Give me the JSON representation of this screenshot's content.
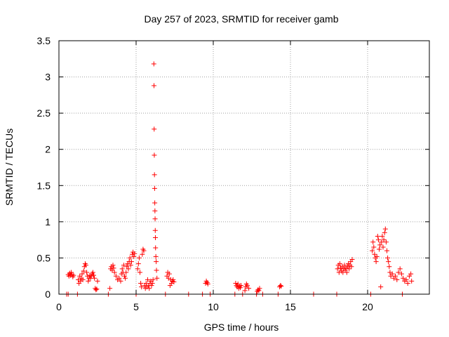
{
  "chart_data": {
    "type": "scatter",
    "title": "Day 257 of 2023, SRMTID for receiver gamb",
    "xlabel": "GPS time / hours",
    "ylabel": "SRMTID / TECUs",
    "xlim": [
      0,
      24
    ],
    "ylim": [
      0,
      3.5
    ],
    "xticks": [
      0,
      5,
      10,
      15,
      20
    ],
    "yticks": [
      0,
      0.5,
      1,
      1.5,
      2,
      2.5,
      3,
      3.5
    ],
    "xtick_labels": [
      "0",
      "5",
      "10",
      "15",
      "20"
    ],
    "ytick_labels": [
      "0",
      "0.5",
      "1",
      "1.5",
      "2",
      "2.5",
      "3",
      "3.5"
    ],
    "grid": true,
    "marker": "+",
    "color": "#ff0000",
    "series": [
      {
        "name": "SRMTID",
        "points": [
          [
            0.5,
            0
          ],
          [
            0.6,
            0
          ],
          [
            0.6,
            0.27
          ],
          [
            0.65,
            0.25
          ],
          [
            0.7,
            0.29
          ],
          [
            0.75,
            0.26
          ],
          [
            0.8,
            0.3
          ],
          [
            0.85,
            0.27
          ],
          [
            0.9,
            0.24
          ],
          [
            0.95,
            0.26
          ],
          [
            1.2,
            0
          ],
          [
            1.25,
            0.2
          ],
          [
            1.3,
            0.15
          ],
          [
            1.35,
            0.25
          ],
          [
            1.4,
            0.18
          ],
          [
            1.45,
            0.22
          ],
          [
            1.5,
            0.28
          ],
          [
            1.55,
            0.2
          ],
          [
            1.6,
            0.32
          ],
          [
            1.65,
            0.38
          ],
          [
            1.7,
            0.42
          ],
          [
            1.75,
            0.4
          ],
          [
            1.8,
            0.3
          ],
          [
            1.85,
            0.25
          ],
          [
            1.9,
            0.18
          ],
          [
            1.95,
            0.22
          ],
          [
            2.0,
            0.26
          ],
          [
            2.05,
            0.22
          ],
          [
            2.1,
            0.25
          ],
          [
            2.15,
            0.28
          ],
          [
            2.2,
            0.3
          ],
          [
            2.25,
            0.26
          ],
          [
            2.3,
            0.22
          ],
          [
            2.35,
            0.08
          ],
          [
            2.4,
            0.06
          ],
          [
            2.45,
            0.07
          ],
          [
            2.5,
            0.18
          ],
          [
            3.2,
            0
          ],
          [
            3.3,
            0.08
          ],
          [
            3.35,
            0.35
          ],
          [
            3.4,
            0.38
          ],
          [
            3.45,
            0.33
          ],
          [
            3.5,
            0.4
          ],
          [
            3.55,
            0.36
          ],
          [
            3.6,
            0.3
          ],
          [
            3.7,
            0.25
          ],
          [
            3.8,
            0.2
          ],
          [
            3.9,
            0.22
          ],
          [
            4.0,
            0.18
          ],
          [
            4.05,
            0.28
          ],
          [
            4.1,
            0.35
          ],
          [
            4.15,
            0.3
          ],
          [
            4.2,
            0.4
          ],
          [
            4.25,
            0.25
          ],
          [
            4.3,
            0.22
          ],
          [
            4.35,
            0.3
          ],
          [
            4.4,
            0.38
          ],
          [
            4.45,
            0.42
          ],
          [
            4.5,
            0.35
          ],
          [
            4.55,
            0.45
          ],
          [
            4.6,
            0.5
          ],
          [
            4.65,
            0.4
          ],
          [
            4.7,
            0.45
          ],
          [
            4.75,
            0.55
          ],
          [
            4.8,
            0.58
          ],
          [
            4.85,
            0.52
          ],
          [
            4.9,
            0.56
          ],
          [
            5.0,
            0
          ],
          [
            5.1,
            0.35
          ],
          [
            5.15,
            0.42
          ],
          [
            5.2,
            0.5
          ],
          [
            5.25,
            0.3
          ],
          [
            5.3,
            0.15
          ],
          [
            5.35,
            0.1
          ],
          [
            5.4,
            0.55
          ],
          [
            5.45,
            0.62
          ],
          [
            5.5,
            0.6
          ],
          [
            5.55,
            0.12
          ],
          [
            5.6,
            0.08
          ],
          [
            5.65,
            0.15
          ],
          [
            5.7,
            0.1
          ],
          [
            5.75,
            0.2
          ],
          [
            5.8,
            0.12
          ],
          [
            5.85,
            0.08
          ],
          [
            5.9,
            0.15
          ],
          [
            5.95,
            0.18
          ],
          [
            6.0,
            0.12
          ],
          [
            6.05,
            0.15
          ],
          [
            6.1,
            0.2
          ],
          [
            6.15,
            3.18
          ],
          [
            6.16,
            2.88
          ],
          [
            6.17,
            2.28
          ],
          [
            6.18,
            1.92
          ],
          [
            6.19,
            1.65
          ],
          [
            6.2,
            1.46
          ],
          [
            6.21,
            1.26
          ],
          [
            6.22,
            1.15
          ],
          [
            6.23,
            1.04
          ],
          [
            6.24,
            0.88
          ],
          [
            6.25,
            0.78
          ],
          [
            6.26,
            0.64
          ],
          [
            6.28,
            0.52
          ],
          [
            6.3,
            0.45
          ],
          [
            6.32,
            0.33
          ],
          [
            6.35,
            0.22
          ],
          [
            6.9,
            0
          ],
          [
            7.0,
            0.25
          ],
          [
            7.05,
            0.3
          ],
          [
            7.1,
            0.22
          ],
          [
            7.15,
            0.28
          ],
          [
            7.2,
            0.12
          ],
          [
            7.25,
            0.2
          ],
          [
            7.3,
            0.15
          ],
          [
            7.35,
            0.18
          ],
          [
            7.4,
            0.2
          ],
          [
            7.45,
            0.17
          ],
          [
            8.4,
            0
          ],
          [
            9.3,
            0
          ],
          [
            9.5,
            0.15
          ],
          [
            9.55,
            0.18
          ],
          [
            9.6,
            0.16
          ],
          [
            9.65,
            0.14
          ],
          [
            9.8,
            0
          ],
          [
            11.4,
            0
          ],
          [
            11.45,
            0.15
          ],
          [
            11.5,
            0.12
          ],
          [
            11.55,
            0.1
          ],
          [
            11.6,
            0.14
          ],
          [
            11.65,
            0.08
          ],
          [
            11.7,
            0.11
          ],
          [
            11.75,
            0.09
          ],
          [
            11.8,
            0.12
          ],
          [
            11.9,
            0
          ],
          [
            12.05,
            0.05
          ],
          [
            12.1,
            0.1
          ],
          [
            12.15,
            0.14
          ],
          [
            12.2,
            0.12
          ],
          [
            12.3,
            0.08
          ],
          [
            12.8,
            0
          ],
          [
            12.85,
            0.04
          ],
          [
            12.9,
            0.06
          ],
          [
            12.95,
            0.05
          ],
          [
            13.0,
            0.08
          ],
          [
            13.2,
            0
          ],
          [
            14.2,
            0
          ],
          [
            14.3,
            0.1
          ],
          [
            14.35,
            0.12
          ],
          [
            14.4,
            0.11
          ],
          [
            16.5,
            0
          ],
          [
            18.0,
            0
          ],
          [
            18.05,
            0.35
          ],
          [
            18.1,
            0.4
          ],
          [
            18.15,
            0.3
          ],
          [
            18.2,
            0.42
          ],
          [
            18.25,
            0.36
          ],
          [
            18.3,
            0.32
          ],
          [
            18.35,
            0.38
          ],
          [
            18.4,
            0.3
          ],
          [
            18.45,
            0.35
          ],
          [
            18.5,
            0.4
          ],
          [
            18.55,
            0.33
          ],
          [
            18.6,
            0.36
          ],
          [
            18.65,
            0.3
          ],
          [
            18.7,
            0.38
          ],
          [
            18.75,
            0.42
          ],
          [
            18.8,
            0.35
          ],
          [
            18.85,
            0.4
          ],
          [
            18.9,
            0.45
          ],
          [
            18.95,
            0.38
          ],
          [
            19.0,
            0.48
          ],
          [
            20.2,
            0
          ],
          [
            20.3,
            0.6
          ],
          [
            20.35,
            0.72
          ],
          [
            20.4,
            0.65
          ],
          [
            20.45,
            0.55
          ],
          [
            20.5,
            0.5
          ],
          [
            20.55,
            0.45
          ],
          [
            20.6,
            0.52
          ],
          [
            20.65,
            0.8
          ],
          [
            20.7,
            0.75
          ],
          [
            20.75,
            0.62
          ],
          [
            20.8,
            0.68
          ],
          [
            20.85,
            0.1
          ],
          [
            20.9,
            0.72
          ],
          [
            20.95,
            0.8
          ],
          [
            21.0,
            0.65
          ],
          [
            21.05,
            0.75
          ],
          [
            21.1,
            0.85
          ],
          [
            21.15,
            0.9
          ],
          [
            21.2,
            0.72
          ],
          [
            21.25,
            0.6
          ],
          [
            21.3,
            0.5
          ],
          [
            21.35,
            0.45
          ],
          [
            21.4,
            0.38
          ],
          [
            21.45,
            0.3
          ],
          [
            21.5,
            0.25
          ],
          [
            21.6,
            0.28
          ],
          [
            21.7,
            0.22
          ],
          [
            21.8,
            0.25
          ],
          [
            21.9,
            0.2
          ],
          [
            22.0,
            0.3
          ],
          [
            22.1,
            0.35
          ],
          [
            22.2,
            0.28
          ],
          [
            22.25,
            0
          ],
          [
            22.3,
            0.22
          ],
          [
            22.4,
            0.18
          ],
          [
            22.5,
            0.2
          ],
          [
            22.6,
            0.15
          ],
          [
            22.7,
            0.25
          ],
          [
            22.8,
            0.28
          ],
          [
            22.85,
            0.18
          ]
        ]
      }
    ]
  }
}
